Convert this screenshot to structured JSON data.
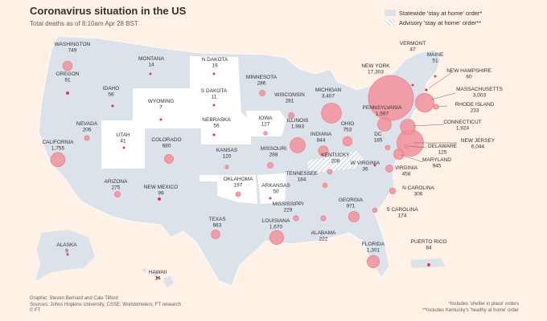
{
  "header": {
    "title": "Coronavirus situation in the US",
    "subtitle": "Total deaths as of 8:10am Apr 28 BST"
  },
  "legend": {
    "statewide": "Statewide 'stay at home' order*",
    "advisory": "Advisory 'stay at home' order**"
  },
  "colors": {
    "background": "#fff1e5",
    "statewide": "#dbe2ea",
    "no_order": "#ffffff",
    "bubble": "#f2909b",
    "bubble_stroke": "#e8727f",
    "dot": "#d9405a"
  },
  "states": [
    {
      "key": "WA",
      "name": "WASHINGTON",
      "deaths": "749",
      "order": "statewide"
    },
    {
      "key": "OR",
      "name": "OREGON",
      "deaths": "91",
      "order": "statewide"
    },
    {
      "key": "ID",
      "name": "IDAHO",
      "deaths": "56",
      "order": "statewide"
    },
    {
      "key": "MT",
      "name": "MONTANA",
      "deaths": "14",
      "order": "statewide"
    },
    {
      "key": "ND",
      "name": "N DAKOTA",
      "deaths": "19",
      "order": "none"
    },
    {
      "key": "SD",
      "name": "S DAKOTA",
      "deaths": "11",
      "order": "none"
    },
    {
      "key": "MN",
      "name": "MINNESOTA",
      "deaths": "286",
      "order": "statewide"
    },
    {
      "key": "WI",
      "name": "WISCONSIN",
      "deaths": "281",
      "order": "statewide"
    },
    {
      "key": "MI",
      "name": "MICHIGAN",
      "deaths": "3,407",
      "order": "statewide"
    },
    {
      "key": "NY",
      "name": "NEW YORK",
      "deaths": "17,303",
      "order": "statewide"
    },
    {
      "key": "VT",
      "name": "VERMONT",
      "deaths": "47",
      "order": "statewide"
    },
    {
      "key": "ME",
      "name": "MAINE",
      "deaths": "51",
      "order": "statewide"
    },
    {
      "key": "NH",
      "name": "NEW HAMPSHIRE",
      "deaths": "60",
      "order": "statewide"
    },
    {
      "key": "MA",
      "name": "MASSACHUSETTS",
      "deaths": "3,003",
      "order": "statewide"
    },
    {
      "key": "RI",
      "name": "RHODE ISLAND",
      "deaths": "233",
      "order": "statewide"
    },
    {
      "key": "CT",
      "name": "CONNECTICUT",
      "deaths": "1,924",
      "order": "statewide"
    },
    {
      "key": "NJ",
      "name": "NEW JERSEY",
      "deaths": "6,044",
      "order": "statewide"
    },
    {
      "key": "DE",
      "name": "DELAWARE",
      "deaths": "125",
      "order": "statewide"
    },
    {
      "key": "MD",
      "name": "MARYLAND",
      "deaths": "945",
      "order": "statewide"
    },
    {
      "key": "PA",
      "name": "PENNSYLVANIA",
      "deaths": "1,597",
      "order": "statewide"
    },
    {
      "key": "WY",
      "name": "WYOMING",
      "deaths": "7",
      "order": "none"
    },
    {
      "key": "NE",
      "name": "NEBRASKA",
      "deaths": "56",
      "order": "none"
    },
    {
      "key": "IA",
      "name": "IOWA",
      "deaths": "127",
      "order": "none"
    },
    {
      "key": "IL",
      "name": "ILLINOIS",
      "deaths": "1,983",
      "order": "statewide"
    },
    {
      "key": "IN",
      "name": "INDIANA",
      "deaths": "844",
      "order": "statewide"
    },
    {
      "key": "OH",
      "name": "OHIO",
      "deaths": "753",
      "order": "statewide"
    },
    {
      "key": "DC",
      "name": "DC",
      "deaths": "185",
      "order": "statewide"
    },
    {
      "key": "NV",
      "name": "NEVADA",
      "deaths": "206",
      "order": "statewide"
    },
    {
      "key": "UT",
      "name": "UTAH",
      "deaths": "41",
      "order": "none"
    },
    {
      "key": "CO",
      "name": "COLORADO",
      "deaths": "680",
      "order": "statewide"
    },
    {
      "key": "KS",
      "name": "KANSAS",
      "deaths": "120",
      "order": "statewide"
    },
    {
      "key": "MO",
      "name": "MISSOURI",
      "deaths": "288",
      "order": "statewide"
    },
    {
      "key": "KY",
      "name": "KENTUCKY",
      "deaths": "208",
      "order": "advisory"
    },
    {
      "key": "WV",
      "name": "W VIRGINIA",
      "deaths": "36",
      "order": "statewide"
    },
    {
      "key": "VA",
      "name": "VIRGINIA",
      "deaths": "458",
      "order": "statewide"
    },
    {
      "key": "CA",
      "name": "CALIFORNIA",
      "deaths": "1,755",
      "order": "statewide"
    },
    {
      "key": "AZ",
      "name": "ARIZONA",
      "deaths": "275",
      "order": "statewide"
    },
    {
      "key": "NM",
      "name": "NEW MEXICO",
      "deaths": "99",
      "order": "statewide"
    },
    {
      "key": "OK",
      "name": "OKLAHOMA",
      "deaths": "197",
      "order": "none"
    },
    {
      "key": "AR",
      "name": "ARKANSAS",
      "deaths": "50",
      "order": "none"
    },
    {
      "key": "TN",
      "name": "TENNESSEE",
      "deaths": "184",
      "order": "statewide"
    },
    {
      "key": "NC",
      "name": "N CAROLINA",
      "deaths": "306",
      "order": "statewide"
    },
    {
      "key": "SC",
      "name": "S CAROLINA",
      "deaths": "174",
      "order": "statewide"
    },
    {
      "key": "GA",
      "name": "GEORGIA",
      "deaths": "971",
      "order": "statewide"
    },
    {
      "key": "MS",
      "name": "MISSISSIPPI",
      "deaths": "229",
      "order": "statewide"
    },
    {
      "key": "AL",
      "name": "ALABAMA",
      "deaths": "222",
      "order": "statewide"
    },
    {
      "key": "LA",
      "name": "LOUISIANA",
      "deaths": "1,670",
      "order": "statewide"
    },
    {
      "key": "TX",
      "name": "TEXAS",
      "deaths": "663",
      "order": "statewide"
    },
    {
      "key": "FL",
      "name": "FLORIDA",
      "deaths": "1,301",
      "order": "statewide"
    },
    {
      "key": "AK",
      "name": "ALASKA",
      "deaths": "9",
      "order": "statewide"
    },
    {
      "key": "HI",
      "name": "HAWAII",
      "deaths": "14",
      "order": "statewide"
    },
    {
      "key": "PR",
      "name": "PUERTO RICO",
      "deaths": "84",
      "order": "statewide"
    }
  ],
  "footer": {
    "graphic": "Graphic: Steven Bernard and Cale Tilford",
    "sources": "Sources: Johns Hopkins University, CSSE; Worldometers; FT research",
    "credit": "© FT"
  },
  "notes": {
    "note1": "*Includes 'shelter in place' orders",
    "note2": "**Includes Kentucky's 'healthy at home' order"
  }
}
